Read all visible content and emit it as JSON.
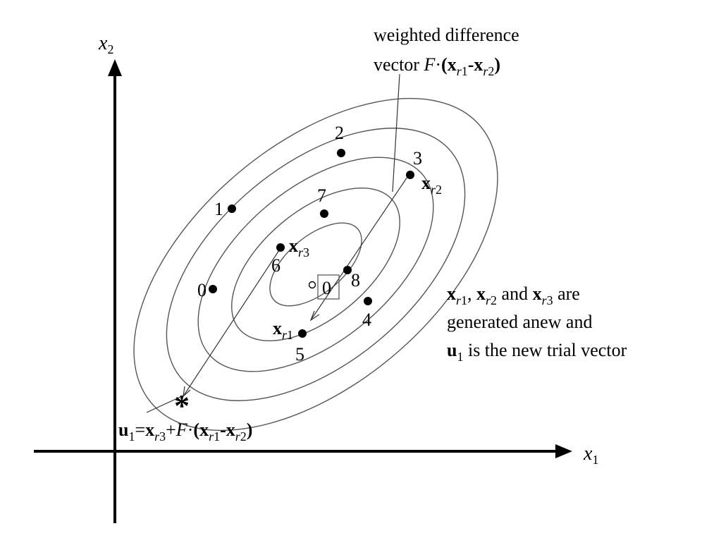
{
  "axes": {
    "x_label": "x",
    "x_label_sub": "1",
    "y_label": "x",
    "y_label_sub": "2"
  },
  "contours": 5,
  "points": [
    {
      "label": "0",
      "kind": "population"
    },
    {
      "label": "1",
      "kind": "population"
    },
    {
      "label": "2",
      "kind": "population"
    },
    {
      "label": "3",
      "kind": "population"
    },
    {
      "label": "4",
      "kind": "population"
    },
    {
      "label": "5",
      "kind": "population"
    },
    {
      "label": "6",
      "kind": "population"
    },
    {
      "label": "7",
      "kind": "population"
    },
    {
      "label": "8",
      "kind": "population"
    },
    {
      "label": "0",
      "kind": "minimum"
    }
  ],
  "vector_labels": {
    "xr1": {
      "base": "x",
      "sub_italic": "r",
      "sub_num": "1"
    },
    "xr2": {
      "base": "x",
      "sub_italic": "r",
      "sub_num": "2"
    },
    "xr3": {
      "base": "x",
      "sub_italic": "r",
      "sub_num": "3"
    }
  },
  "annotation_top": {
    "line1": "weighted difference",
    "line2_prefix": "vector ",
    "F": "F",
    "dot": "·",
    "open": "(",
    "x": "x",
    "r": "r",
    "one": "1",
    "minus": "-",
    "two": "2",
    "close": ")"
  },
  "annotation_right": {
    "line1_and": " and ",
    "line1_are": " are",
    "line2": "generated anew and",
    "line3_u": "u",
    "line3_sub": "1",
    "line3_rest": " is the new trial vector",
    "sep": ", "
  },
  "formula_bottom": {
    "u": "u",
    "u_sub": "1",
    "eq": "=",
    "x": "x",
    "r": "r",
    "three": "3",
    "plus": "+",
    "F": "F",
    "dot": "·",
    "open": "(",
    "one": "1",
    "minus": "-",
    "two": "2",
    "close": ")"
  },
  "trial_marker": "*"
}
